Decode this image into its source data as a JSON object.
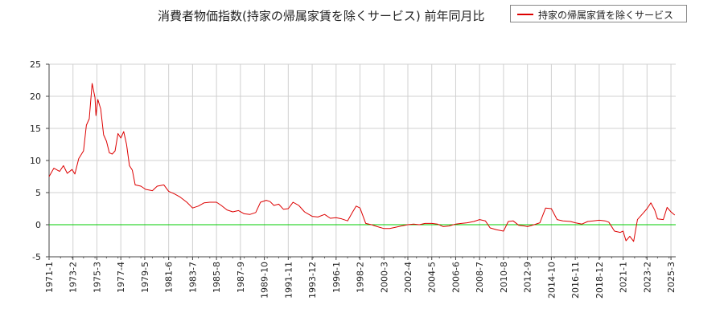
{
  "chart_data": {
    "type": "line",
    "title": "消費者物価指数(持家の帰属家賃を除くサービス) 前年同月比",
    "xlabel": "",
    "ylabel": "",
    "x_tick_labels": [
      "1971-1",
      "1973-2",
      "1975-3",
      "1977-4",
      "1979-5",
      "1981-6",
      "1983-7",
      "1985-8",
      "1987-9",
      "1989-10",
      "1991-11",
      "1993-12",
      "1996-1",
      "1998-2",
      "2000-3",
      "2002-4",
      "2004-5",
      "2006-6",
      "2008-7",
      "2010-8",
      "2012-9",
      "2014-10",
      "2016-11",
      "2018-12",
      "2021-1",
      "2023-2",
      "2025-3"
    ],
    "y_ticks": [
      25,
      20,
      15,
      10,
      5,
      0,
      -5
    ],
    "ylim": [
      -5,
      25
    ],
    "grid": true,
    "legend_position": "top-right",
    "reference_line": {
      "y": 0,
      "color": "#00cc00"
    },
    "series": [
      {
        "name": "持家の帰属家賃を除くサービス",
        "color": "#dd0000",
        "points": [
          [
            "1971-01",
            7.5
          ],
          [
            "1971-06",
            8.8
          ],
          [
            "1971-12",
            8.3
          ],
          [
            "1972-04",
            9.2
          ],
          [
            "1972-08",
            8.0
          ],
          [
            "1973-01",
            8.6
          ],
          [
            "1973-04",
            7.9
          ],
          [
            "1973-08",
            10.3
          ],
          [
            "1974-01",
            11.5
          ],
          [
            "1974-04",
            15.5
          ],
          [
            "1974-07",
            16.5
          ],
          [
            "1974-10",
            22.0
          ],
          [
            "1975-01",
            19.8
          ],
          [
            "1975-02",
            17.0
          ],
          [
            "1975-04",
            19.5
          ],
          [
            "1975-07",
            18.0
          ],
          [
            "1975-10",
            14.0
          ],
          [
            "1976-01",
            13.0
          ],
          [
            "1976-04",
            11.2
          ],
          [
            "1976-07",
            11.0
          ],
          [
            "1976-10",
            11.5
          ],
          [
            "1977-01",
            14.2
          ],
          [
            "1977-04",
            13.5
          ],
          [
            "1977-07",
            14.5
          ],
          [
            "1977-10",
            12.5
          ],
          [
            "1978-01",
            9.2
          ],
          [
            "1978-04",
            8.5
          ],
          [
            "1978-07",
            6.2
          ],
          [
            "1979-01",
            6.0
          ],
          [
            "1979-06",
            5.5
          ],
          [
            "1980-01",
            5.3
          ],
          [
            "1980-06",
            6.0
          ],
          [
            "1981-01",
            6.2
          ],
          [
            "1981-06",
            5.2
          ],
          [
            "1981-12",
            4.8
          ],
          [
            "1982-06",
            4.3
          ],
          [
            "1983-01",
            3.5
          ],
          [
            "1983-07",
            2.6
          ],
          [
            "1984-01",
            2.9
          ],
          [
            "1984-07",
            3.4
          ],
          [
            "1985-01",
            3.5
          ],
          [
            "1985-08",
            3.5
          ],
          [
            "1986-01",
            3.0
          ],
          [
            "1986-07",
            2.3
          ],
          [
            "1987-01",
            2.0
          ],
          [
            "1987-07",
            2.2
          ],
          [
            "1988-01",
            1.7
          ],
          [
            "1988-07",
            1.6
          ],
          [
            "1989-01",
            1.9
          ],
          [
            "1989-06",
            3.5
          ],
          [
            "1989-12",
            3.8
          ],
          [
            "1990-04",
            3.6
          ],
          [
            "1990-08",
            3.0
          ],
          [
            "1991-01",
            3.2
          ],
          [
            "1991-06",
            2.4
          ],
          [
            "1991-11",
            2.5
          ],
          [
            "1992-04",
            3.5
          ],
          [
            "1992-10",
            3.0
          ],
          [
            "1993-04",
            2.0
          ],
          [
            "1993-12",
            1.3
          ],
          [
            "1994-06",
            1.2
          ],
          [
            "1995-01",
            1.6
          ],
          [
            "1995-07",
            1.0
          ],
          [
            "1996-01",
            1.1
          ],
          [
            "1996-07",
            0.9
          ],
          [
            "1997-01",
            0.6
          ],
          [
            "1997-06",
            1.9
          ],
          [
            "1997-10",
            2.9
          ],
          [
            "1998-02",
            2.6
          ],
          [
            "1998-08",
            0.2
          ],
          [
            "1999-02",
            0.0
          ],
          [
            "1999-08",
            -0.3
          ],
          [
            "2000-03",
            -0.6
          ],
          [
            "2000-09",
            -0.6
          ],
          [
            "2001-03",
            -0.4
          ],
          [
            "2001-09",
            -0.2
          ],
          [
            "2002-04",
            0.0
          ],
          [
            "2002-10",
            0.1
          ],
          [
            "2003-04",
            0.0
          ],
          [
            "2003-10",
            0.2
          ],
          [
            "2004-05",
            0.2
          ],
          [
            "2004-11",
            0.1
          ],
          [
            "2005-05",
            -0.3
          ],
          [
            "2005-11",
            -0.2
          ],
          [
            "2006-06",
            0.1
          ],
          [
            "2006-12",
            0.2
          ],
          [
            "2007-06",
            0.3
          ],
          [
            "2008-01",
            0.5
          ],
          [
            "2008-07",
            0.8
          ],
          [
            "2009-01",
            0.6
          ],
          [
            "2009-06",
            -0.5
          ],
          [
            "2010-01",
            -0.8
          ],
          [
            "2010-08",
            -1.0
          ],
          [
            "2011-01",
            0.5
          ],
          [
            "2011-06",
            0.6
          ],
          [
            "2011-12",
            -0.1
          ],
          [
            "2012-06",
            -0.2
          ],
          [
            "2012-09",
            -0.3
          ],
          [
            "2013-04",
            0.0
          ],
          [
            "2013-10",
            0.3
          ],
          [
            "2014-04",
            2.6
          ],
          [
            "2014-10",
            2.5
          ],
          [
            "2015-04",
            0.8
          ],
          [
            "2015-10",
            0.6
          ],
          [
            "2016-06",
            0.5
          ],
          [
            "2016-11",
            0.3
          ],
          [
            "2017-06",
            0.1
          ],
          [
            "2017-12",
            0.5
          ],
          [
            "2018-06",
            0.6
          ],
          [
            "2018-12",
            0.7
          ],
          [
            "2019-06",
            0.6
          ],
          [
            "2019-10",
            0.4
          ],
          [
            "2020-04",
            -1.0
          ],
          [
            "2020-10",
            -1.2
          ],
          [
            "2021-01",
            -1.0
          ],
          [
            "2021-04",
            -2.5
          ],
          [
            "2021-08",
            -1.8
          ],
          [
            "2021-12",
            -2.6
          ],
          [
            "2022-04",
            0.8
          ],
          [
            "2022-10",
            1.8
          ],
          [
            "2023-02",
            2.5
          ],
          [
            "2023-06",
            3.4
          ],
          [
            "2023-10",
            2.3
          ],
          [
            "2024-01",
            0.9
          ],
          [
            "2024-07",
            0.8
          ],
          [
            "2024-11",
            2.7
          ],
          [
            "2025-03",
            2.0
          ],
          [
            "2025-07",
            1.5
          ]
        ]
      }
    ]
  }
}
